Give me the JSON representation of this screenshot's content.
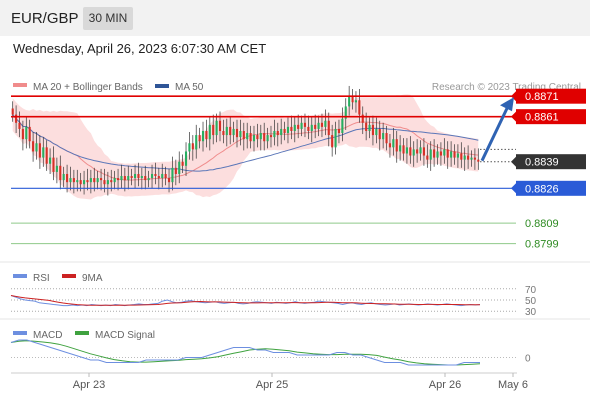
{
  "header": {
    "pair": "EUR/GBP",
    "timeframe": "30 MIN",
    "datetime": "Wednesday, April 26, 2023 6:07:30 AM CET"
  },
  "legend": {
    "ma20": "MA 20 + Bollinger Bands",
    "ma50": "MA 50",
    "credit": "Research © 2023 Trading Central",
    "rsi": "RSI",
    "rsi_ma": "9MA",
    "macd": "MACD",
    "macd_signal": "MACD Signal"
  },
  "colors": {
    "resistance": "#e00000",
    "support": "#2a5bd7",
    "target": "#2e8b22",
    "current": "#333333",
    "candle_up": "#27ae60",
    "candle_down": "#d63027",
    "bollinger_fill": "#fbd3d3",
    "ma20": "#f08c8c",
    "ma50": "#5a76b8",
    "rsi": "#6d8fe0",
    "rsi_ma": "#cc2222",
    "macd": "#6d8fe0",
    "macd_signal": "#3fa23f"
  },
  "chart_data": [
    {
      "type": "candlestick",
      "x_labels": [
        "Apr 23",
        "Apr 25",
        "Apr 26",
        "May 6"
      ],
      "ylim": [
        0.879,
        0.8875
      ],
      "levels": [
        {
          "value": 0.8871,
          "label": "0.8871",
          "kind": "resistance"
        },
        {
          "value": 0.8861,
          "label": "0.8861",
          "kind": "resistance"
        },
        {
          "value": 0.8839,
          "label": "0.8839",
          "kind": "current"
        },
        {
          "value": 0.8826,
          "label": "0.8826",
          "kind": "support"
        },
        {
          "value": 0.8809,
          "label": "0.8809",
          "kind": "target"
        },
        {
          "value": 0.8799,
          "label": "0.8799",
          "kind": "target"
        }
      ],
      "close": [
        0.8862,
        0.8858,
        0.8855,
        0.885,
        0.8856,
        0.8849,
        0.8844,
        0.8848,
        0.8841,
        0.8846,
        0.8838,
        0.8841,
        0.8834,
        0.8837,
        0.883,
        0.8833,
        0.8829,
        0.8831,
        0.8829,
        0.883,
        0.8828,
        0.883,
        0.8829,
        0.8831,
        0.8829,
        0.8831,
        0.883,
        0.8828,
        0.883,
        0.8829,
        0.8831,
        0.883,
        0.8832,
        0.883,
        0.8832,
        0.8831,
        0.8833,
        0.8831,
        0.8832,
        0.883,
        0.8831,
        0.8833,
        0.8832,
        0.8831,
        0.8833,
        0.8831,
        0.8829,
        0.8836,
        0.8833,
        0.8839,
        0.8837,
        0.8844,
        0.8848,
        0.8845,
        0.8852,
        0.8849,
        0.8854,
        0.885,
        0.8857,
        0.8852,
        0.8859,
        0.8854,
        0.8852,
        0.8856,
        0.8852,
        0.8855,
        0.8851,
        0.8854,
        0.885,
        0.8853,
        0.8849,
        0.8852,
        0.885,
        0.8853,
        0.8849,
        0.8852,
        0.8851,
        0.8854,
        0.8852,
        0.8855,
        0.8853,
        0.8856,
        0.8854,
        0.8857,
        0.8855,
        0.8858,
        0.8856,
        0.8854,
        0.8857,
        0.8855,
        0.8858,
        0.8856,
        0.8859,
        0.8852,
        0.8846,
        0.8855,
        0.8853,
        0.886,
        0.8866,
        0.8871,
        0.8868,
        0.8869,
        0.8862,
        0.8858,
        0.8854,
        0.8857,
        0.8852,
        0.8855,
        0.885,
        0.8853,
        0.8848,
        0.8846,
        0.885,
        0.8844,
        0.8847,
        0.8843,
        0.8846,
        0.8842,
        0.8845,
        0.8843,
        0.8846,
        0.8842,
        0.884,
        0.8845,
        0.8841,
        0.8844,
        0.8842,
        0.8845,
        0.8841,
        0.8844,
        0.8841,
        0.8843,
        0.884,
        0.8842,
        0.884,
        0.8841,
        0.884,
        0.8839
      ]
    },
    {
      "type": "line",
      "name": "RSI",
      "levels": [
        {
          "value": 70,
          "label": "70"
        },
        {
          "value": 50,
          "label": "50"
        },
        {
          "value": 30,
          "label": "30"
        }
      ],
      "values": [
        58,
        55,
        52,
        50,
        49,
        48,
        45,
        44,
        43,
        42,
        41,
        40,
        40,
        41,
        40,
        41,
        40,
        42,
        41,
        40,
        41,
        40,
        42,
        41,
        40,
        41,
        42,
        43,
        42,
        42,
        43,
        44,
        48,
        50,
        47,
        45,
        46,
        48,
        49,
        47,
        46,
        45,
        46,
        47,
        45,
        44,
        45,
        46,
        44,
        43,
        44,
        46,
        47,
        46,
        45,
        44,
        46,
        45,
        44,
        45,
        47,
        45,
        44,
        45,
        46,
        48,
        47,
        46,
        45,
        44,
        42,
        44,
        45,
        43,
        42,
        44,
        45,
        43,
        42,
        41,
        42,
        43,
        41,
        42,
        43,
        42,
        41,
        42,
        43,
        42,
        41,
        42,
        43,
        42,
        41,
        40,
        41,
        42,
        41,
        42
      ]
    },
    {
      "type": "line",
      "name": "MACD",
      "levels": [
        {
          "value": 0,
          "label": "0"
        }
      ],
      "values": [
        0.0006,
        0.0007,
        0.0007,
        0.0006,
        0.0005,
        0.0004,
        0.0003,
        0.0002,
        0.0001,
        0.0,
        -0.0001,
        -0.0001,
        -0.0002,
        -0.0002,
        -0.0002,
        -0.0002,
        -0.0002,
        -0.0001,
        -0.0001,
        -0.0001,
        -0.0001,
        -0.0001,
        0.0,
        0.0,
        0.0,
        0.0001,
        0.0002,
        0.0003,
        0.0004,
        0.0004,
        0.0004,
        0.0003,
        0.0003,
        0.0002,
        0.0002,
        0.0002,
        0.0001,
        0.0001,
        0.0001,
        0.0001,
        0.0001,
        0.0002,
        0.0002,
        0.0001,
        0.0001,
        0.0,
        -0.0001,
        -0.0002,
        -0.0002,
        -0.0002,
        -0.0003,
        -0.0003,
        -0.0003,
        -0.0003,
        -0.0003,
        -0.0003,
        -0.0003,
        -0.0002,
        -0.0002,
        -0.0002
      ]
    }
  ]
}
